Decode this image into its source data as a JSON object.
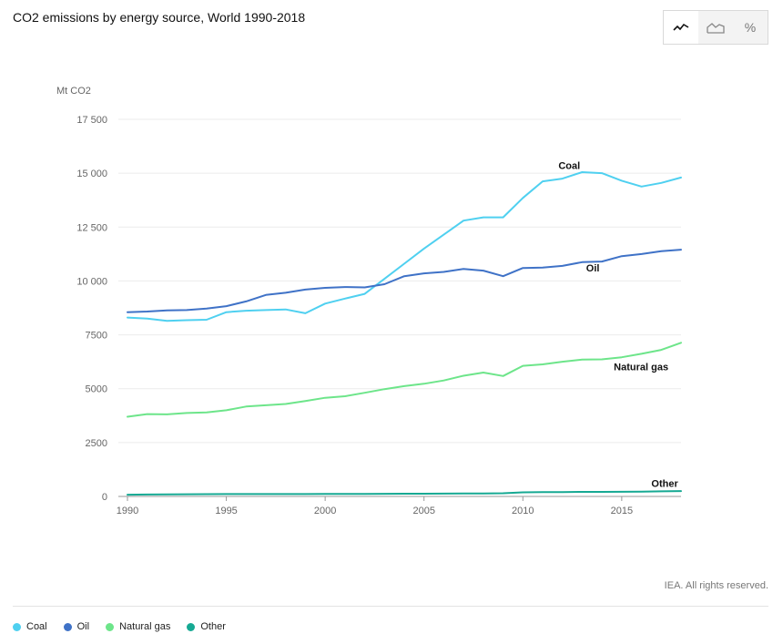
{
  "title": "CO2 emissions by energy source, World 1990-2018",
  "toolbar": {
    "tools": [
      {
        "name": "line-chart-icon",
        "active": true
      },
      {
        "name": "area-chart-icon",
        "active": false
      },
      {
        "name": "percent-icon",
        "label": "%",
        "active": false
      }
    ]
  },
  "credit": "IEA. All rights reserved.",
  "chart_data": {
    "type": "line",
    "title": "CO2 emissions by energy source, World 1990-2018",
    "ylabel": "Mt CO2",
    "xlabel": "",
    "ylim": [
      0,
      17500
    ],
    "xlim": [
      1990,
      2018
    ],
    "yticks": [
      0,
      2500,
      5000,
      7500,
      10000,
      12500,
      15000,
      17500
    ],
    "ytick_labels": [
      "0",
      "2500",
      "5000",
      "7500",
      "10 000",
      "12 500",
      "15 000",
      "17 500"
    ],
    "xticks": [
      1990,
      1995,
      2000,
      2005,
      2010,
      2015
    ],
    "xtick_labels": [
      "1990",
      "1995",
      "2000",
      "2005",
      "2010",
      "2015"
    ],
    "grid": true,
    "legend_placement": "bottom-left",
    "x": [
      1990,
      1991,
      1992,
      1993,
      1994,
      1995,
      1996,
      1997,
      1998,
      1999,
      2000,
      2001,
      2002,
      2003,
      2004,
      2005,
      2006,
      2007,
      2008,
      2009,
      2010,
      2011,
      2012,
      2013,
      2014,
      2015,
      2016,
      2017,
      2018
    ],
    "series": [
      {
        "name": "Coal",
        "color": "#4fd0f0",
        "values": [
          8300,
          8250,
          8150,
          8180,
          8200,
          8550,
          8620,
          8650,
          8680,
          8500,
          8950,
          9180,
          9400,
          10100,
          10800,
          11500,
          12150,
          12800,
          12950,
          12950,
          13850,
          14620,
          14750,
          15050,
          15000,
          14650,
          14380,
          14550,
          14800
        ]
      },
      {
        "name": "Oil",
        "color": "#3f72c7",
        "values": [
          8550,
          8580,
          8630,
          8650,
          8720,
          8830,
          9050,
          9350,
          9450,
          9600,
          9680,
          9720,
          9700,
          9850,
          10220,
          10350,
          10420,
          10560,
          10480,
          10220,
          10600,
          10620,
          10700,
          10870,
          10900,
          11150,
          11250,
          11380,
          11450
        ]
      },
      {
        "name": "Natural gas",
        "color": "#6de58a",
        "values": [
          3700,
          3820,
          3810,
          3870,
          3900,
          4000,
          4170,
          4230,
          4290,
          4430,
          4580,
          4650,
          4810,
          4980,
          5120,
          5230,
          5380,
          5600,
          5750,
          5590,
          6060,
          6130,
          6250,
          6350,
          6360,
          6460,
          6620,
          6800,
          7130
        ]
      },
      {
        "name": "Other",
        "color": "#16a993",
        "values": [
          80,
          90,
          95,
          100,
          105,
          110,
          110,
          110,
          110,
          112,
          115,
          118,
          120,
          122,
          125,
          128,
          130,
          135,
          140,
          150,
          190,
          200,
          205,
          210,
          210,
          215,
          225,
          235,
          250
        ]
      }
    ],
    "annotations": [
      {
        "series": "Coal",
        "text": "Coal",
        "x": 2011.8,
        "y": 15200
      },
      {
        "series": "Oil",
        "text": "Oil",
        "x": 2013.2,
        "y": 10450
      },
      {
        "series": "Natural gas",
        "text": "Natural gas",
        "x": 2014.6,
        "y": 5850
      },
      {
        "series": "Other",
        "text": "Other",
        "x": 2016.5,
        "y": 450
      }
    ]
  },
  "legend": [
    {
      "label": "Coal",
      "color": "#4fd0f0"
    },
    {
      "label": "Oil",
      "color": "#3f72c7"
    },
    {
      "label": "Natural gas",
      "color": "#6de58a"
    },
    {
      "label": "Other",
      "color": "#16a993"
    }
  ]
}
